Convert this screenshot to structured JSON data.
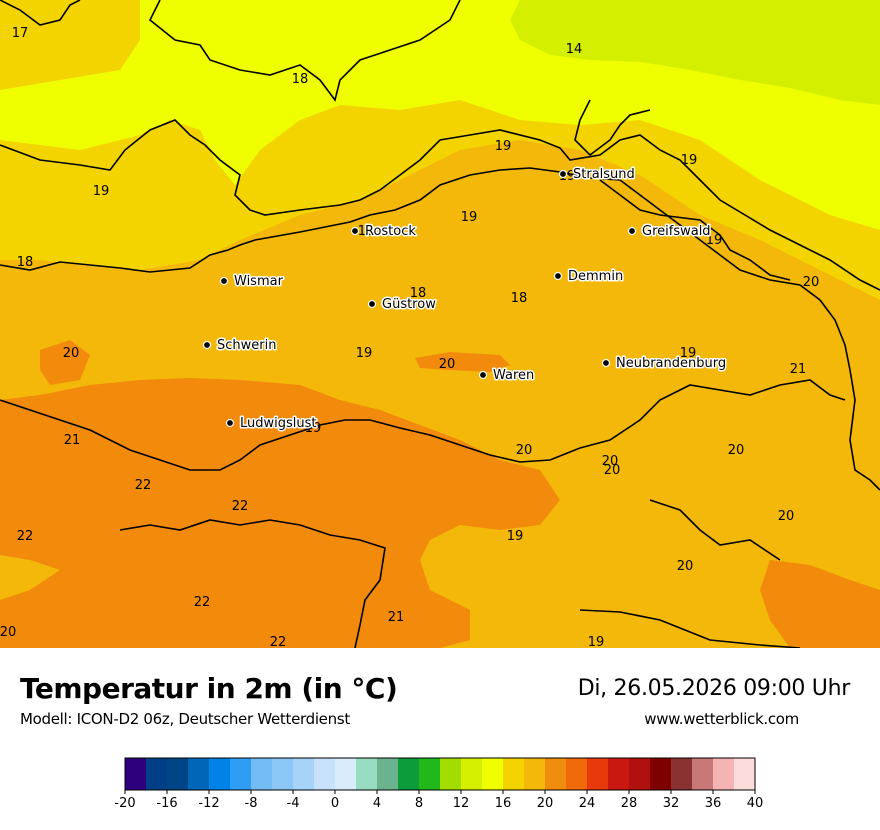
{
  "header": {
    "title": "Temperatur in 2m (in °C)",
    "model_line": "Modell: ICON-D2 06z, Deutscher Wetterdienst",
    "datetime": "Di, 26.05.2026 09:00 Uhr",
    "website": "www.wetterblick.com"
  },
  "colors": {
    "t14": "#d4f000",
    "t16": "#f0ff00",
    "t18": "#f3d400",
    "t20": "#f3b80a",
    "t22": "#f28a0c",
    "border": "#000000"
  },
  "cities": [
    {
      "name": "Stralsund"
    },
    {
      "name": "Rostock"
    },
    {
      "name": "Greifswald"
    },
    {
      "name": "Wismar"
    },
    {
      "name": "Demmin"
    },
    {
      "name": "Güstrow"
    },
    {
      "name": "Schwerin"
    },
    {
      "name": "Neubrandenburg"
    },
    {
      "name": "Waren"
    },
    {
      "name": "Ludwigslust"
    }
  ],
  "isotherm_labels": [
    {
      "value": "17"
    },
    {
      "value": "14"
    },
    {
      "value": "18"
    },
    {
      "value": "19"
    },
    {
      "value": "19"
    },
    {
      "value": "19"
    },
    {
      "value": "19"
    },
    {
      "value": "18"
    },
    {
      "value": "19"
    },
    {
      "value": "18"
    },
    {
      "value": "19"
    },
    {
      "value": "18"
    },
    {
      "value": "18"
    },
    {
      "value": "20"
    },
    {
      "value": "20"
    },
    {
      "value": "19"
    },
    {
      "value": "20"
    },
    {
      "value": "19"
    },
    {
      "value": "21"
    },
    {
      "value": "19"
    },
    {
      "value": "20"
    },
    {
      "value": "20"
    },
    {
      "value": "22"
    },
    {
      "value": "22"
    },
    {
      "value": "20"
    },
    {
      "value": "21"
    },
    {
      "value": "22"
    },
    {
      "value": "20"
    },
    {
      "value": "19"
    },
    {
      "value": "20"
    },
    {
      "value": "22"
    },
    {
      "value": "21"
    },
    {
      "value": "20"
    },
    {
      "value": "19"
    },
    {
      "value": "22"
    },
    {
      "value": "20"
    }
  ],
  "legend": {
    "colors": [
      "#2e007e",
      "#003f87",
      "#004585",
      "#0066b8",
      "#0083e6",
      "#2f9df3",
      "#74bcf6",
      "#8ac6f6",
      "#a8d3f9",
      "#c9e2fb",
      "#d9ecfc",
      "#98dcc2",
      "#6bb38e",
      "#0c9d3a",
      "#20b81b",
      "#a3dc00",
      "#d4f000",
      "#f0ff00",
      "#f3d400",
      "#f3b80a",
      "#f08d0f",
      "#f06a0c",
      "#e8390a",
      "#c91810",
      "#b0100e",
      "#7f0000",
      "#8a3232",
      "#c97878",
      "#f4b4b4",
      "#fcdcdc"
    ],
    "ticks": [
      "-20",
      "-16",
      "-12",
      "-8",
      "-4",
      "0",
      "4",
      "8",
      "12",
      "16",
      "20",
      "24",
      "28",
      "32",
      "36",
      "40"
    ]
  }
}
